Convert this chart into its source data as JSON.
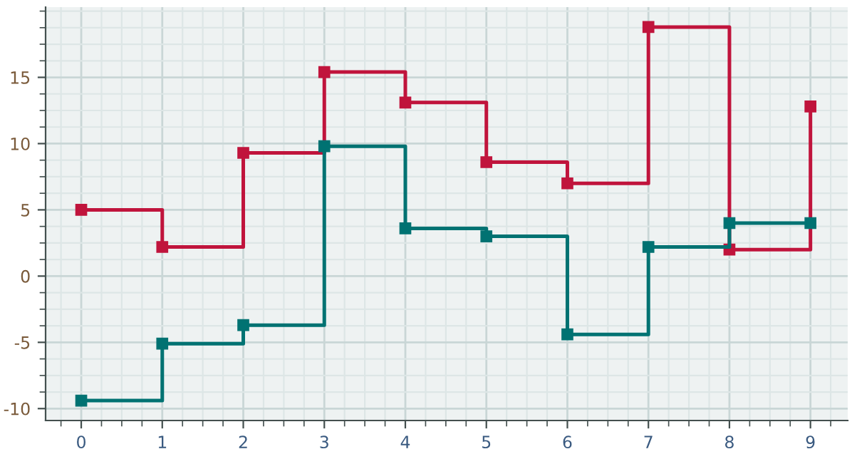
{
  "chart_data": {
    "type": "step",
    "x": [
      0,
      1,
      2,
      3,
      4,
      5,
      6,
      7,
      8,
      9
    ],
    "series": [
      {
        "color": "#c0143c",
        "values": [
          5.0,
          2.2,
          9.3,
          15.4,
          13.1,
          8.6,
          7.0,
          18.8,
          2.0,
          12.8
        ]
      },
      {
        "color": "#007272",
        "values": [
          -9.4,
          -5.1,
          -3.7,
          9.8,
          3.6,
          3.0,
          -4.4,
          2.2,
          4.0,
          4.0
        ]
      }
    ],
    "xlim": [
      -0.44,
      9.46
    ],
    "ylim": [
      -10.9,
      20.3
    ],
    "xticks": [
      0,
      1,
      2,
      3,
      4,
      5,
      6,
      7,
      8,
      9
    ],
    "yticks": [
      -10,
      -5,
      0,
      5,
      10,
      15
    ],
    "grid": true,
    "marker": "square",
    "line_style": "solid"
  }
}
